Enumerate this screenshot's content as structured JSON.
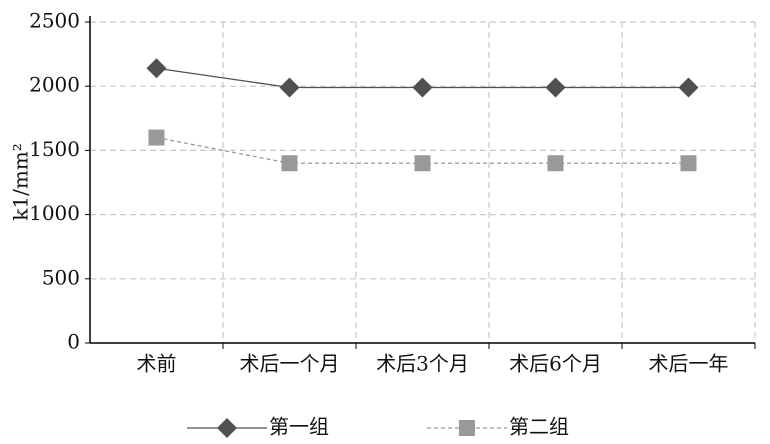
{
  "chart_data": {
    "type": "line",
    "y_label": "k1/mm²",
    "categories": [
      "术前",
      "术后一个月",
      "术后3个月",
      "术后6个月",
      "术后一年"
    ],
    "series": [
      {
        "name": "第一组",
        "color": "#505050",
        "marker": "diamond",
        "line_style": "solid",
        "values": [
          2140,
          1990,
          1990,
          1990,
          1990
        ]
      },
      {
        "name": "第二组",
        "color": "#999999",
        "marker": "square",
        "line_style": "dashed",
        "values": [
          1600,
          1400,
          1400,
          1400,
          1400
        ]
      }
    ],
    "ylim": [
      0,
      2500
    ],
    "yticks": [
      0,
      500,
      1000,
      1500,
      2000,
      2500
    ],
    "grid": true,
    "legend": "bottom"
  }
}
